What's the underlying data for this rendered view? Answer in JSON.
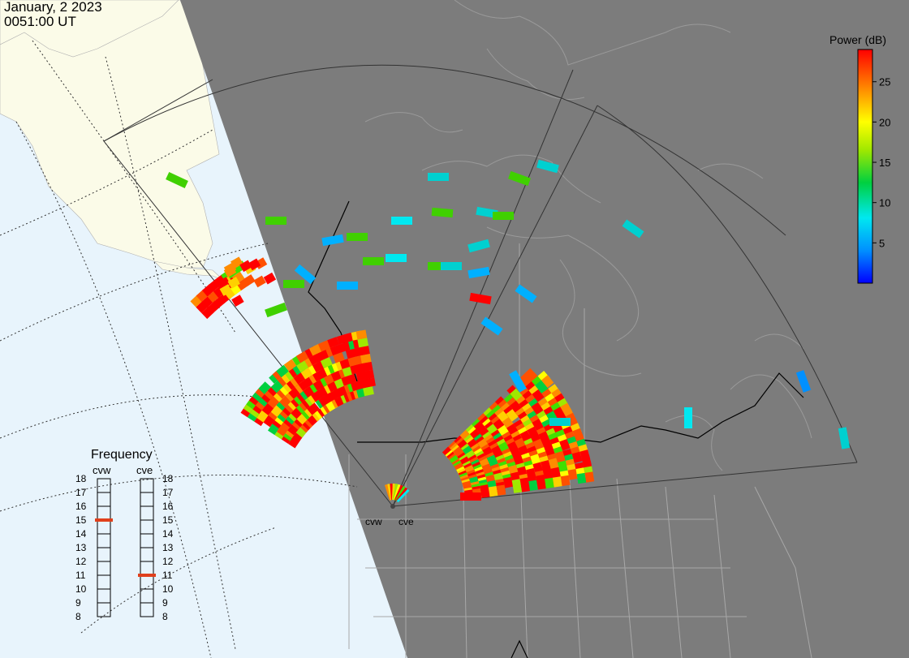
{
  "header": {
    "date": "January, 2 2023",
    "time": "0051:00 UT"
  },
  "colorbar": {
    "title": "Power (dB)",
    "ticks": [
      "25",
      "20",
      "15",
      "10",
      "5"
    ],
    "range": [
      0,
      29
    ],
    "colors": [
      "#0000ff",
      "#0090ff",
      "#00e8f0",
      "#00d040",
      "#a0e800",
      "#ffff00",
      "#ff8c00",
      "#ff0000"
    ]
  },
  "frequency": {
    "title": "Frequency",
    "ticks": [
      "18",
      "17",
      "16",
      "15",
      "14",
      "13",
      "12",
      "11",
      "10",
      "9",
      "8"
    ],
    "radars": [
      {
        "label": "cvw",
        "frequency_mhz": 15
      },
      {
        "label": "cve",
        "frequency_mhz": 11
      }
    ],
    "marker_color": "#e0401c"
  },
  "radar_sites": [
    {
      "label": "cvw"
    },
    {
      "label": "cve"
    }
  ],
  "colors": {
    "night": "#7c7c7c",
    "ocean": "#e8f4fc",
    "land_day": "#fbfbe8",
    "borders": "#000000",
    "state_lines": "#a8a8a8"
  }
}
